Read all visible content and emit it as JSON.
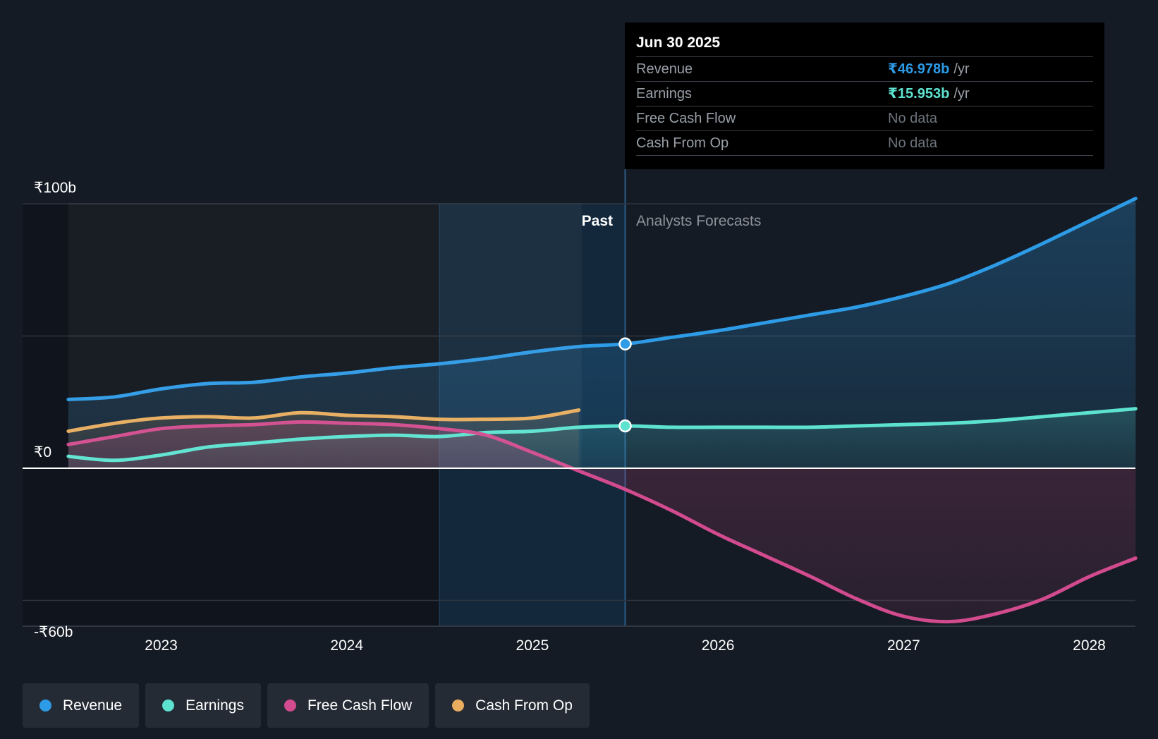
{
  "tooltip": {
    "date": "Jun 30 2025",
    "rows": [
      {
        "label": "Revenue",
        "value": "₹46.978b",
        "unit": "/yr",
        "color": "#2d9be6"
      },
      {
        "label": "Earnings",
        "value": "₹15.953b",
        "unit": "/yr",
        "color": "#5de2d0"
      },
      {
        "label": "Free Cash Flow",
        "value": "No data",
        "unit": ""
      },
      {
        "label": "Cash From Op",
        "value": "No data",
        "unit": ""
      }
    ]
  },
  "regions": {
    "past_label": "Past",
    "forecast_label": "Analysts Forecasts"
  },
  "legend": [
    {
      "label": "Revenue",
      "color": "#2d9be6"
    },
    {
      "label": "Earnings",
      "color": "#5de2d0"
    },
    {
      "label": "Free Cash Flow",
      "color": "#d24b8e"
    },
    {
      "label": "Cash From Op",
      "color": "#e8ad5e"
    }
  ],
  "chart_data": {
    "type": "line",
    "y_tick_labels": [
      "₹100b",
      "₹0",
      "-₹60b"
    ],
    "y_ticks": [
      100,
      0,
      -60
    ],
    "ylim": [
      -60,
      100
    ],
    "x_tick_labels": [
      "2023",
      "2024",
      "2025",
      "2026",
      "2027",
      "2028"
    ],
    "x_ticks": [
      2023,
      2024,
      2025,
      2026,
      2027,
      2028
    ],
    "xlim": [
      2022.5,
      2028.25
    ],
    "highlight_range": [
      2024.5,
      2025.5
    ],
    "divider_x": 2025.5,
    "grid": true,
    "legend_position": "bottom-left",
    "series": [
      {
        "name": "Revenue",
        "color": "#2d9be6",
        "points": [
          [
            2022.5,
            26
          ],
          [
            2022.75,
            27
          ],
          [
            2023.0,
            30
          ],
          [
            2023.25,
            32
          ],
          [
            2023.5,
            32.5
          ],
          [
            2023.75,
            34.5
          ],
          [
            2024.0,
            36
          ],
          [
            2024.25,
            38
          ],
          [
            2024.5,
            39.5
          ],
          [
            2024.75,
            41.5
          ],
          [
            2025.0,
            44
          ],
          [
            2025.25,
            46
          ],
          [
            2025.5,
            47
          ],
          [
            2025.75,
            49.5
          ],
          [
            2026.0,
            52
          ],
          [
            2026.25,
            55
          ],
          [
            2026.5,
            58
          ],
          [
            2026.75,
            61
          ],
          [
            2027.0,
            65
          ],
          [
            2027.25,
            70
          ],
          [
            2027.5,
            77
          ],
          [
            2027.75,
            85
          ],
          [
            2028.0,
            93.5
          ],
          [
            2028.25,
            102
          ]
        ]
      },
      {
        "name": "Earnings",
        "color": "#5de2d0",
        "points": [
          [
            2022.5,
            4.5
          ],
          [
            2022.75,
            3
          ],
          [
            2023.0,
            5
          ],
          [
            2023.25,
            8
          ],
          [
            2023.5,
            9.5
          ],
          [
            2023.75,
            11
          ],
          [
            2024.0,
            12
          ],
          [
            2024.25,
            12.5
          ],
          [
            2024.5,
            12
          ],
          [
            2024.75,
            13.5
          ],
          [
            2025.0,
            14
          ],
          [
            2025.25,
            15.5
          ],
          [
            2025.5,
            16
          ],
          [
            2025.75,
            15.5
          ],
          [
            2026.0,
            15.5
          ],
          [
            2026.25,
            15.5
          ],
          [
            2026.5,
            15.5
          ],
          [
            2026.75,
            16
          ],
          [
            2027.0,
            16.5
          ],
          [
            2027.25,
            17
          ],
          [
            2027.5,
            18
          ],
          [
            2027.75,
            19.5
          ],
          [
            2028.0,
            21
          ],
          [
            2028.25,
            22.5
          ]
        ]
      },
      {
        "name": "Free Cash Flow",
        "color": "#d24b8e",
        "points": [
          [
            2022.5,
            9
          ],
          [
            2022.75,
            12
          ],
          [
            2023.0,
            15
          ],
          [
            2023.25,
            16
          ],
          [
            2023.5,
            16.5
          ],
          [
            2023.75,
            17.5
          ],
          [
            2024.0,
            17
          ],
          [
            2024.25,
            16.5
          ],
          [
            2024.5,
            15
          ],
          [
            2024.75,
            12.5
          ],
          [
            2025.0,
            6
          ],
          [
            2025.25,
            -1
          ],
          [
            2025.5,
            -8
          ],
          [
            2025.75,
            -16
          ],
          [
            2026.0,
            -25
          ],
          [
            2026.25,
            -33
          ],
          [
            2026.5,
            -41
          ],
          [
            2026.75,
            -49.5
          ],
          [
            2027.0,
            -56
          ],
          [
            2027.25,
            -58
          ],
          [
            2027.5,
            -55
          ],
          [
            2027.75,
            -49.5
          ],
          [
            2028.0,
            -41
          ],
          [
            2028.25,
            -34
          ]
        ]
      },
      {
        "name": "Cash From Op",
        "color": "#e8ad5e",
        "points": [
          [
            2022.5,
            14
          ],
          [
            2022.75,
            17
          ],
          [
            2023.0,
            19
          ],
          [
            2023.25,
            19.5
          ],
          [
            2023.5,
            19
          ],
          [
            2023.75,
            21
          ],
          [
            2024.0,
            20
          ],
          [
            2024.25,
            19.5
          ],
          [
            2024.5,
            18.5
          ],
          [
            2024.75,
            18.5
          ],
          [
            2025.0,
            19
          ],
          [
            2025.25,
            22
          ]
        ]
      }
    ]
  }
}
